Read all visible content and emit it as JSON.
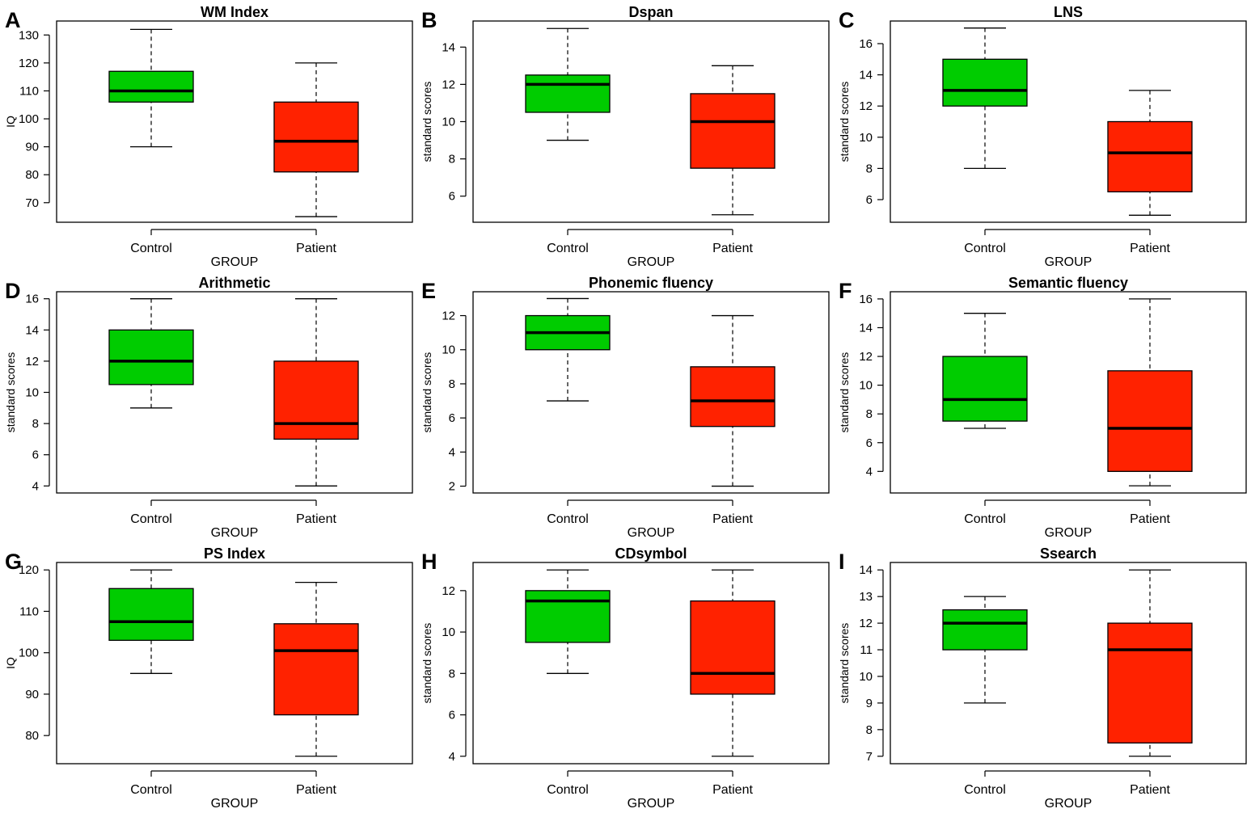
{
  "colors": {
    "control": "#00CC00",
    "patient": "#FF2200",
    "frame": "#000000"
  },
  "chart_data": [
    {
      "panel_label": "A",
      "type": "boxplot",
      "title": "WM Index",
      "ylabel": "IQ",
      "xlabel": "GROUP",
      "categories": [
        "Control",
        "Patient"
      ],
      "ylim": [
        63,
        135
      ],
      "yticks": [
        70,
        80,
        90,
        100,
        110,
        120,
        130
      ],
      "boxes": [
        {
          "group": "Control",
          "min": 90,
          "q1": 106,
          "median": 110,
          "q3": 117,
          "max": 132
        },
        {
          "group": "Patient",
          "min": 65,
          "q1": 81,
          "median": 92,
          "q3": 106,
          "max": 120
        }
      ]
    },
    {
      "panel_label": "B",
      "type": "boxplot",
      "title": "Dspan",
      "ylabel": "standard scores",
      "xlabel": "GROUP",
      "categories": [
        "Control",
        "Patient"
      ],
      "ylim": [
        4.6,
        15.4
      ],
      "yticks": [
        6,
        8,
        10,
        12,
        14
      ],
      "boxes": [
        {
          "group": "Control",
          "min": 9,
          "q1": 10.5,
          "median": 12,
          "q3": 12.5,
          "max": 15
        },
        {
          "group": "Patient",
          "min": 5,
          "q1": 7.5,
          "median": 10,
          "q3": 11.5,
          "max": 13
        }
      ]
    },
    {
      "panel_label": "C",
      "type": "boxplot",
      "title": "LNS",
      "ylabel": "standard scores",
      "xlabel": "GROUP",
      "categories": [
        "Control",
        "Patient"
      ],
      "ylim": [
        4.55,
        17.45
      ],
      "yticks": [
        6,
        8,
        10,
        12,
        14,
        16
      ],
      "boxes": [
        {
          "group": "Control",
          "min": 8,
          "q1": 12,
          "median": 13,
          "q3": 15,
          "max": 17
        },
        {
          "group": "Patient",
          "min": 5,
          "q1": 6.5,
          "median": 9,
          "q3": 11,
          "max": 13
        }
      ]
    },
    {
      "panel_label": "D",
      "type": "boxplot",
      "title": "Arithmetic",
      "ylabel": "standard scores",
      "xlabel": "GROUP",
      "categories": [
        "Control",
        "Patient"
      ],
      "ylim": [
        3.55,
        16.45
      ],
      "yticks": [
        4,
        6,
        8,
        10,
        12,
        14,
        16
      ],
      "boxes": [
        {
          "group": "Control",
          "min": 9,
          "q1": 10.5,
          "median": 12,
          "q3": 14,
          "max": 16
        },
        {
          "group": "Patient",
          "min": 4,
          "q1": 7,
          "median": 8,
          "q3": 12,
          "max": 16
        }
      ]
    },
    {
      "panel_label": "E",
      "type": "boxplot",
      "title": "Phonemic fluency",
      "ylabel": "standard scores",
      "xlabel": "GROUP",
      "categories": [
        "Control",
        "Patient"
      ],
      "ylim": [
        1.6,
        13.4
      ],
      "yticks": [
        2,
        4,
        6,
        8,
        10,
        12
      ],
      "boxes": [
        {
          "group": "Control",
          "min": 7,
          "q1": 10,
          "median": 11,
          "q3": 12,
          "max": 13
        },
        {
          "group": "Patient",
          "min": 2,
          "q1": 5.5,
          "median": 7,
          "q3": 9,
          "max": 12
        }
      ]
    },
    {
      "panel_label": "F",
      "type": "boxplot",
      "title": "Semantic fluency",
      "ylabel": "standard scores",
      "xlabel": "GROUP",
      "categories": [
        "Control",
        "Patient"
      ],
      "ylim": [
        2.5,
        16.5
      ],
      "yticks": [
        4,
        6,
        8,
        10,
        12,
        14,
        16
      ],
      "boxes": [
        {
          "group": "Control",
          "min": 7,
          "q1": 7.5,
          "median": 9,
          "q3": 12,
          "max": 15
        },
        {
          "group": "Patient",
          "min": 3,
          "q1": 4,
          "median": 7,
          "q3": 11,
          "max": 16
        }
      ]
    },
    {
      "panel_label": "G",
      "type": "boxplot",
      "title": "PS Index",
      "ylabel": "IQ",
      "xlabel": "GROUP",
      "categories": [
        "Control",
        "Patient"
      ],
      "ylim": [
        73.2,
        121.8
      ],
      "yticks": [
        80,
        90,
        100,
        110,
        120
      ],
      "boxes": [
        {
          "group": "Control",
          "min": 95,
          "q1": 103,
          "median": 107.5,
          "q3": 115.5,
          "max": 120
        },
        {
          "group": "Patient",
          "min": 75,
          "q1": 85,
          "median": 100.5,
          "q3": 107,
          "max": 117
        }
      ]
    },
    {
      "panel_label": "H",
      "type": "boxplot",
      "title": "CDsymbol",
      "ylabel": "standard scores",
      "xlabel": "GROUP",
      "categories": [
        "Control",
        "Patient"
      ],
      "ylim": [
        3.64,
        13.36
      ],
      "yticks": [
        4,
        6,
        8,
        10,
        12
      ],
      "boxes": [
        {
          "group": "Control",
          "min": 8,
          "q1": 9.5,
          "median": 11.5,
          "q3": 12,
          "max": 13
        },
        {
          "group": "Patient",
          "min": 4,
          "q1": 7,
          "median": 8,
          "q3": 11.5,
          "max": 13
        }
      ]
    },
    {
      "panel_label": "I",
      "type": "boxplot",
      "title": "Ssearch",
      "ylabel": "standard scores",
      "xlabel": "GROUP",
      "categories": [
        "Control",
        "Patient"
      ],
      "ylim": [
        6.72,
        14.28
      ],
      "yticks": [
        7,
        8,
        9,
        10,
        11,
        12,
        13,
        14
      ],
      "boxes": [
        {
          "group": "Control",
          "min": 9,
          "q1": 11,
          "median": 12,
          "q3": 12.5,
          "max": 13
        },
        {
          "group": "Patient",
          "min": 7,
          "q1": 7.5,
          "median": 11,
          "q3": 12,
          "max": 14
        }
      ]
    }
  ]
}
